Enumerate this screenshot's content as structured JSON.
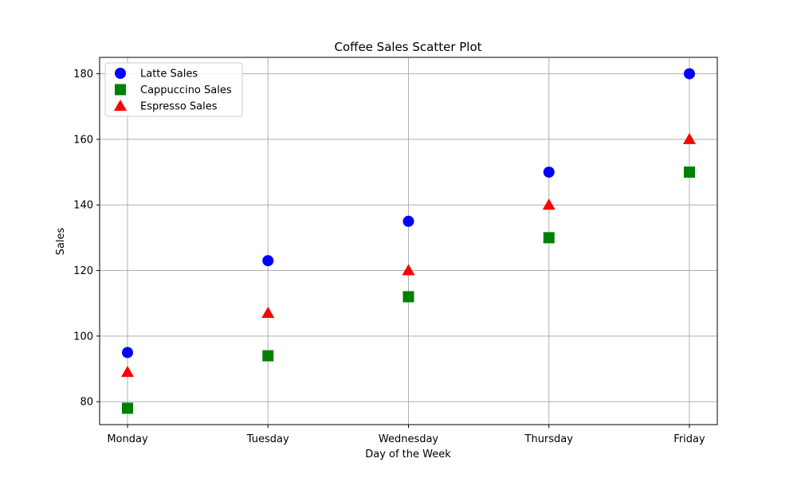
{
  "chart_data": {
    "type": "scatter",
    "title": "Coffee Sales Scatter Plot",
    "xlabel": "Day of the Week",
    "ylabel": "Sales",
    "categories": [
      "Monday",
      "Tuesday",
      "Wednesday",
      "Thursday",
      "Friday"
    ],
    "ylim": [
      73,
      185
    ],
    "yticks": [
      80,
      100,
      120,
      140,
      160,
      180
    ],
    "grid": true,
    "legend_position": "top-left",
    "series": [
      {
        "name": "Latte Sales",
        "marker": "circle",
        "color": "#0000ff",
        "values": [
          95,
          123,
          135,
          150,
          180
        ]
      },
      {
        "name": "Cappuccino Sales",
        "marker": "square",
        "color": "#008000",
        "values": [
          78,
          94,
          112,
          130,
          150
        ]
      },
      {
        "name": "Espresso Sales",
        "marker": "triangle",
        "color": "#ff0000",
        "values": [
          89,
          107,
          120,
          140,
          160
        ]
      }
    ]
  }
}
